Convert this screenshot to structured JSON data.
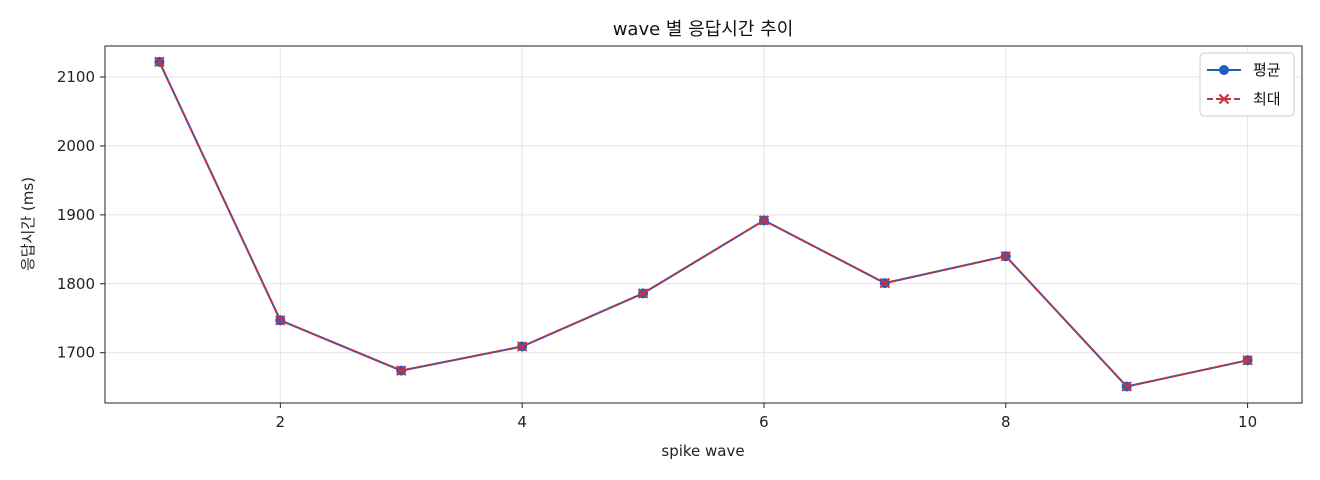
{
  "chart_data": {
    "type": "line",
    "title": "wave 별 응답시간 추이",
    "xlabel": "spike wave",
    "ylabel": "응답시간 (ms)",
    "x": [
      1,
      2,
      3,
      4,
      5,
      6,
      7,
      8,
      9,
      10
    ],
    "xlim": [
      0.55,
      10.45
    ],
    "ylim": [
      1627,
      2145
    ],
    "xticks": [
      2,
      4,
      6,
      8,
      10
    ],
    "yticks": [
      1700,
      1800,
      1900,
      2000,
      2100
    ],
    "grid": true,
    "legend_position": "top-right",
    "series": [
      {
        "name": "평균",
        "values": [
          2122,
          1747,
          1674,
          1709,
          1786,
          1892,
          1801,
          1840,
          1651,
          1689
        ],
        "color": "#1f5fbf",
        "marker": "circle",
        "linestyle": "solid"
      },
      {
        "name": "최대",
        "values": [
          2122,
          1747,
          1674,
          1709,
          1786,
          1892,
          1801,
          1840,
          1651,
          1689
        ],
        "color": "#c8323c",
        "marker": "x",
        "linestyle": "dashed"
      }
    ]
  }
}
